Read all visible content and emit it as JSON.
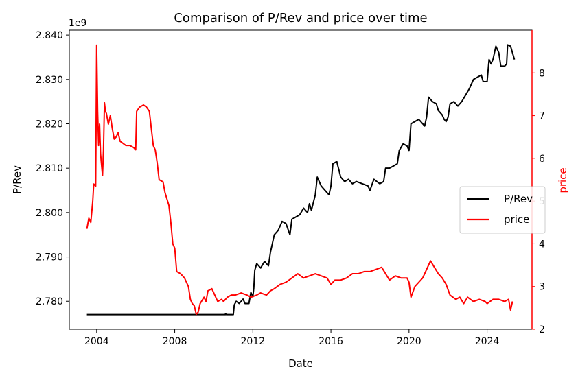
{
  "chart_data": {
    "type": "line",
    "title": "Comparison of P/Rev and price over time",
    "xlabel": "Date",
    "ylabel_left": "P/Rev",
    "ylabel_right": "price",
    "left_axis_offset_text": "1e9",
    "xlim": [
      2002.6,
      2026.3
    ],
    "ylim_left": [
      2.7737,
      2.8411
    ],
    "ylim_right": [
      2.0,
      9.0
    ],
    "x_ticks": [
      2004,
      2008,
      2012,
      2016,
      2020,
      2024
    ],
    "x_tick_labels": [
      "2004",
      "2008",
      "2012",
      "2016",
      "2020",
      "2024"
    ],
    "y_left_ticks": [
      2.78,
      2.79,
      2.8,
      2.81,
      2.82,
      2.83,
      2.84
    ],
    "y_left_tick_labels": [
      "2.780",
      "2.790",
      "2.800",
      "2.810",
      "2.820",
      "2.830",
      "2.840"
    ],
    "y_right_ticks": [
      2,
      3,
      4,
      5,
      6,
      7,
      8
    ],
    "y_right_tick_labels": [
      "2",
      "3",
      "4",
      "5",
      "6",
      "7",
      "8"
    ],
    "grid": false,
    "legend_placement": "center-right",
    "series": [
      {
        "name": "P/Rev",
        "axis": "left",
        "color": "#000000",
        "points": [
          [
            2003.5,
            2.777
          ],
          [
            2010.6,
            2.777
          ],
          [
            2010.6,
            2.7772
          ],
          [
            2010.65,
            2.777
          ],
          [
            2011.0,
            2.777
          ],
          [
            2011.05,
            2.7792
          ],
          [
            2011.15,
            2.78
          ],
          [
            2011.3,
            2.7795
          ],
          [
            2011.5,
            2.7805
          ],
          [
            2011.6,
            2.7795
          ],
          [
            2011.8,
            2.7795
          ],
          [
            2011.9,
            2.782
          ],
          [
            2012.0,
            2.781
          ],
          [
            2012.05,
            2.783
          ],
          [
            2012.1,
            2.787
          ],
          [
            2012.2,
            2.7885
          ],
          [
            2012.4,
            2.7875
          ],
          [
            2012.6,
            2.789
          ],
          [
            2012.8,
            2.788
          ],
          [
            2012.9,
            2.791
          ],
          [
            2013.1,
            2.795
          ],
          [
            2013.3,
            2.796
          ],
          [
            2013.5,
            2.798
          ],
          [
            2013.7,
            2.7975
          ],
          [
            2013.9,
            2.795
          ],
          [
            2014.0,
            2.7985
          ],
          [
            2014.2,
            2.799
          ],
          [
            2014.4,
            2.7995
          ],
          [
            2014.6,
            2.801
          ],
          [
            2014.8,
            2.8
          ],
          [
            2014.9,
            2.802
          ],
          [
            2015.0,
            2.8005
          ],
          [
            2015.2,
            2.804
          ],
          [
            2015.3,
            2.808
          ],
          [
            2015.5,
            2.806
          ],
          [
            2015.7,
            2.805
          ],
          [
            2015.9,
            2.804
          ],
          [
            2016.0,
            2.806
          ],
          [
            2016.1,
            2.811
          ],
          [
            2016.3,
            2.8115
          ],
          [
            2016.5,
            2.808
          ],
          [
            2016.7,
            2.807
          ],
          [
            2016.9,
            2.8075
          ],
          [
            2017.1,
            2.8065
          ],
          [
            2017.3,
            2.807
          ],
          [
            2017.6,
            2.8065
          ],
          [
            2017.9,
            2.806
          ],
          [
            2018.0,
            2.805
          ],
          [
            2018.2,
            2.8075
          ],
          [
            2018.5,
            2.8065
          ],
          [
            2018.7,
            2.807
          ],
          [
            2018.8,
            2.81
          ],
          [
            2019.0,
            2.81
          ],
          [
            2019.2,
            2.8105
          ],
          [
            2019.4,
            2.811
          ],
          [
            2019.5,
            2.814
          ],
          [
            2019.7,
            2.8155
          ],
          [
            2019.9,
            2.815
          ],
          [
            2020.0,
            2.814
          ],
          [
            2020.1,
            2.82
          ],
          [
            2020.3,
            2.8205
          ],
          [
            2020.5,
            2.821
          ],
          [
            2020.8,
            2.8195
          ],
          [
            2020.9,
            2.8215
          ],
          [
            2021.0,
            2.826
          ],
          [
            2021.2,
            2.825
          ],
          [
            2021.4,
            2.8245
          ],
          [
            2021.5,
            2.823
          ],
          [
            2021.7,
            2.822
          ],
          [
            2021.8,
            2.821
          ],
          [
            2021.9,
            2.8205
          ],
          [
            2022.0,
            2.8215
          ],
          [
            2022.1,
            2.8245
          ],
          [
            2022.3,
            2.825
          ],
          [
            2022.5,
            2.824
          ],
          [
            2022.7,
            2.825
          ],
          [
            2022.9,
            2.8265
          ],
          [
            2023.1,
            2.828
          ],
          [
            2023.3,
            2.83
          ],
          [
            2023.5,
            2.8305
          ],
          [
            2023.7,
            2.831
          ],
          [
            2023.8,
            2.8295
          ],
          [
            2024.0,
            2.8295
          ],
          [
            2024.1,
            2.8345
          ],
          [
            2024.2,
            2.8335
          ],
          [
            2024.3,
            2.8345
          ],
          [
            2024.45,
            2.8375
          ],
          [
            2024.6,
            2.836
          ],
          [
            2024.7,
            2.833
          ],
          [
            2024.9,
            2.833
          ],
          [
            2025.0,
            2.8335
          ],
          [
            2025.05,
            2.8378
          ],
          [
            2025.2,
            2.8375
          ],
          [
            2025.3,
            2.836
          ],
          [
            2025.4,
            2.8345
          ]
        ]
      },
      {
        "name": "price",
        "axis": "right",
        "color": "#ff0000",
        "points": [
          [
            2003.5,
            4.35
          ],
          [
            2003.6,
            4.6
          ],
          [
            2003.7,
            4.5
          ],
          [
            2003.8,
            5.0
          ],
          [
            2003.85,
            5.4
          ],
          [
            2003.95,
            5.35
          ],
          [
            2004.0,
            8.65
          ],
          [
            2004.05,
            7.1
          ],
          [
            2004.1,
            6.3
          ],
          [
            2004.15,
            6.8
          ],
          [
            2004.2,
            6.1
          ],
          [
            2004.3,
            5.6
          ],
          [
            2004.35,
            6.2
          ],
          [
            2004.4,
            7.3
          ],
          [
            2004.45,
            7.1
          ],
          [
            2004.5,
            7.05
          ],
          [
            2004.6,
            6.8
          ],
          [
            2004.7,
            7.0
          ],
          [
            2004.8,
            6.7
          ],
          [
            2004.9,
            6.45
          ],
          [
            2005.0,
            6.5
          ],
          [
            2005.1,
            6.6
          ],
          [
            2005.2,
            6.4
          ],
          [
            2005.35,
            6.35
          ],
          [
            2005.5,
            6.3
          ],
          [
            2005.7,
            6.3
          ],
          [
            2005.9,
            6.25
          ],
          [
            2006.0,
            6.2
          ],
          [
            2006.05,
            7.1
          ],
          [
            2006.2,
            7.2
          ],
          [
            2006.4,
            7.25
          ],
          [
            2006.55,
            7.2
          ],
          [
            2006.7,
            7.1
          ],
          [
            2006.8,
            6.7
          ],
          [
            2006.9,
            6.3
          ],
          [
            2007.0,
            6.2
          ],
          [
            2007.1,
            5.9
          ],
          [
            2007.2,
            5.5
          ],
          [
            2007.4,
            5.45
          ],
          [
            2007.5,
            5.2
          ],
          [
            2007.7,
            4.9
          ],
          [
            2007.8,
            4.5
          ],
          [
            2007.9,
            4.0
          ],
          [
            2008.0,
            3.9
          ],
          [
            2008.1,
            3.35
          ],
          [
            2008.3,
            3.3
          ],
          [
            2008.5,
            3.2
          ],
          [
            2008.6,
            3.1
          ],
          [
            2008.7,
            3.0
          ],
          [
            2008.8,
            2.7
          ],
          [
            2008.9,
            2.6
          ],
          [
            2009.0,
            2.55
          ],
          [
            2009.1,
            2.35
          ],
          [
            2009.2,
            2.4
          ],
          [
            2009.3,
            2.6
          ],
          [
            2009.5,
            2.75
          ],
          [
            2009.6,
            2.65
          ],
          [
            2009.7,
            2.9
          ],
          [
            2009.9,
            2.95
          ],
          [
            2010.0,
            2.85
          ],
          [
            2010.2,
            2.65
          ],
          [
            2010.4,
            2.7
          ],
          [
            2010.5,
            2.65
          ],
          [
            2010.7,
            2.75
          ],
          [
            2010.9,
            2.8
          ],
          [
            2011.1,
            2.8
          ],
          [
            2011.4,
            2.85
          ],
          [
            2011.7,
            2.8
          ],
          [
            2011.9,
            2.75
          ],
          [
            2012.2,
            2.8
          ],
          [
            2012.4,
            2.85
          ],
          [
            2012.7,
            2.8
          ],
          [
            2012.9,
            2.9
          ],
          [
            2013.1,
            2.95
          ],
          [
            2013.4,
            3.05
          ],
          [
            2013.7,
            3.1
          ],
          [
            2014.0,
            3.2
          ],
          [
            2014.3,
            3.3
          ],
          [
            2014.6,
            3.2
          ],
          [
            2014.9,
            3.25
          ],
          [
            2015.2,
            3.3
          ],
          [
            2015.5,
            3.25
          ],
          [
            2015.8,
            3.2
          ],
          [
            2016.0,
            3.05
          ],
          [
            2016.2,
            3.15
          ],
          [
            2016.5,
            3.15
          ],
          [
            2016.8,
            3.2
          ],
          [
            2017.1,
            3.3
          ],
          [
            2017.4,
            3.3
          ],
          [
            2017.7,
            3.35
          ],
          [
            2018.0,
            3.35
          ],
          [
            2018.3,
            3.4
          ],
          [
            2018.6,
            3.45
          ],
          [
            2018.8,
            3.3
          ],
          [
            2019.0,
            3.15
          ],
          [
            2019.3,
            3.25
          ],
          [
            2019.6,
            3.2
          ],
          [
            2019.9,
            3.2
          ],
          [
            2020.0,
            3.1
          ],
          [
            2020.1,
            2.75
          ],
          [
            2020.3,
            3.0
          ],
          [
            2020.5,
            3.1
          ],
          [
            2020.7,
            3.2
          ],
          [
            2020.9,
            3.4
          ],
          [
            2021.1,
            3.6
          ],
          [
            2021.3,
            3.45
          ],
          [
            2021.5,
            3.3
          ],
          [
            2021.7,
            3.2
          ],
          [
            2021.9,
            3.05
          ],
          [
            2022.1,
            2.8
          ],
          [
            2022.4,
            2.7
          ],
          [
            2022.6,
            2.75
          ],
          [
            2022.8,
            2.6
          ],
          [
            2023.0,
            2.75
          ],
          [
            2023.3,
            2.65
          ],
          [
            2023.6,
            2.7
          ],
          [
            2023.9,
            2.65
          ],
          [
            2024.0,
            2.6
          ],
          [
            2024.3,
            2.7
          ],
          [
            2024.6,
            2.7
          ],
          [
            2024.9,
            2.65
          ],
          [
            2025.1,
            2.7
          ],
          [
            2025.2,
            2.45
          ],
          [
            2025.3,
            2.65
          ]
        ]
      }
    ]
  }
}
